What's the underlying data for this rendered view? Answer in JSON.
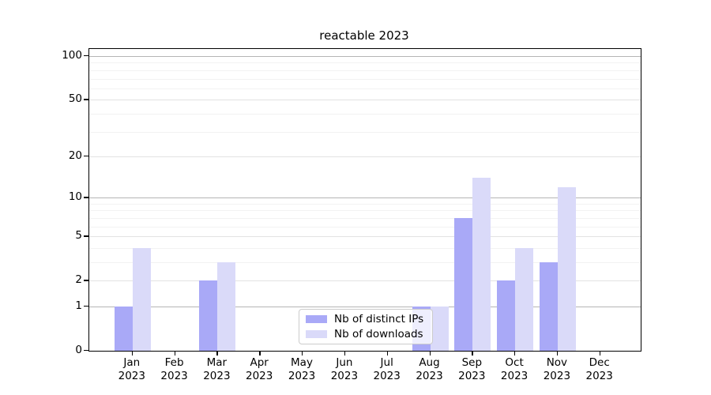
{
  "chart_data": {
    "type": "bar",
    "title": "reactable 2023",
    "categories": [
      "Jan",
      "Feb",
      "Mar",
      "Apr",
      "May",
      "Jun",
      "Jul",
      "Aug",
      "Sep",
      "Oct",
      "Nov",
      "Dec"
    ],
    "category_year": "2023",
    "series": [
      {
        "name": "Nb of distinct IPs",
        "color": "#a9a9f7",
        "values": [
          1,
          0,
          2,
          0,
          0,
          0,
          0,
          1,
          7,
          2,
          3,
          0
        ]
      },
      {
        "name": "Nb of downloads",
        "color": "#dadaf9",
        "values": [
          4,
          0,
          3,
          0,
          0,
          0,
          0,
          1,
          14,
          4,
          12,
          0
        ]
      }
    ],
    "yscale": "log1p",
    "ylim": [
      0,
      112
    ],
    "yticks": [
      0,
      1,
      2,
      5,
      10,
      20,
      50,
      100
    ],
    "decade_gridlines": [
      1,
      10,
      100
    ],
    "labeled_gridlines": [
      2,
      5,
      20,
      50
    ],
    "minor_gridlines": [
      3,
      4,
      6,
      7,
      8,
      9,
      30,
      40,
      60,
      70,
      80,
      90
    ],
    "grid": true,
    "legend_position": "lower center",
    "xlabel": "",
    "ylabel": ""
  }
}
